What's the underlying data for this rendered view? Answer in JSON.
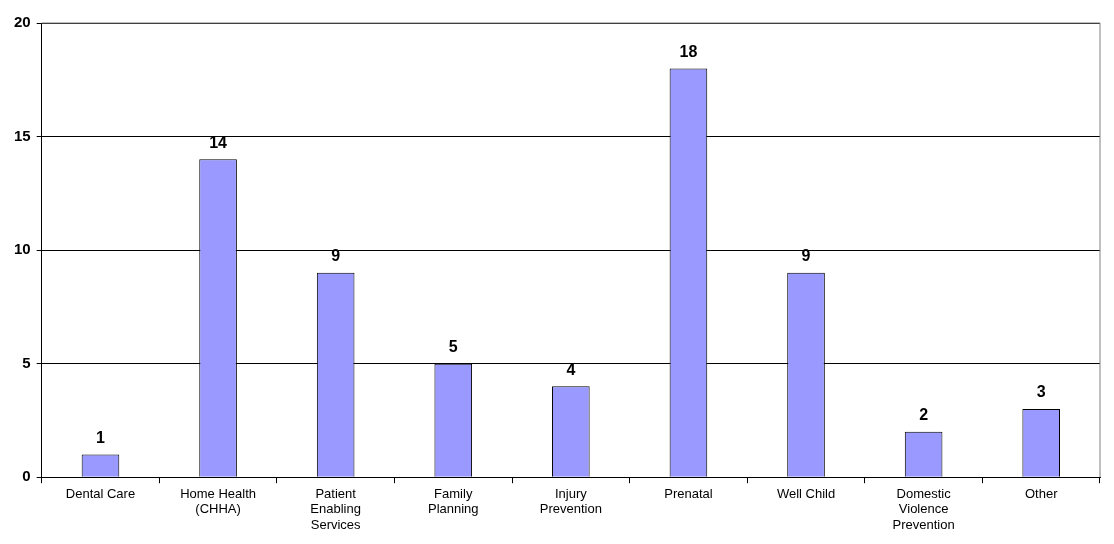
{
  "chart_data": {
    "type": "bar",
    "categories": [
      "Dental Care",
      "Home Health (CHHA)",
      "Patient Enabling Services",
      "Family Planning",
      "Injury Prevention",
      "Prenatal",
      "Well Child",
      "Domestic Violence Prevention",
      "Other"
    ],
    "values": [
      1,
      14,
      9,
      5,
      4,
      18,
      9,
      2,
      3
    ],
    "color": "#9999ff",
    "ylim": [
      0,
      20
    ],
    "yticks": [
      0,
      5,
      10,
      15,
      20
    ],
    "grid": "y",
    "data_labels": true,
    "legend": false
  }
}
